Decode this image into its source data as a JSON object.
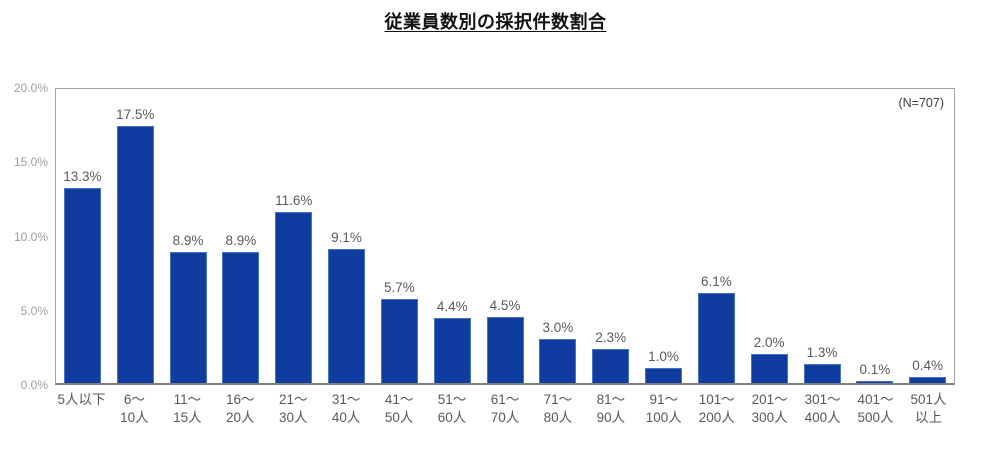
{
  "page": {
    "title": "従業員数別の採択件数割合",
    "annotation": "(N=707)"
  },
  "colors": {
    "bar_fill": "#0f3c9e",
    "bar_border": "#4472c4",
    "data_label_text": "#595959",
    "x_label_text": "#595959",
    "y_label_text": "#9e9e9e",
    "annotation_text": "#3f3f3f",
    "plot_border": "#a3a3a3",
    "axis_line": "#7f7f7f",
    "background": "#ffffff"
  },
  "chart_data": {
    "type": "bar",
    "title": "従業員数別の採択件数割合",
    "annotation": "(N=707)",
    "categories": [
      [
        "5人以下"
      ],
      [
        "6～",
        "10人"
      ],
      [
        "11～",
        "15人"
      ],
      [
        "16～",
        "20人"
      ],
      [
        "21～",
        "30人"
      ],
      [
        "31～",
        "40人"
      ],
      [
        "41～",
        "50人"
      ],
      [
        "51～",
        "60人"
      ],
      [
        "61～",
        "70人"
      ],
      [
        "71～",
        "80人"
      ],
      [
        "81～",
        "90人"
      ],
      [
        "91～",
        "100人"
      ],
      [
        "101～",
        "200人"
      ],
      [
        "201～",
        "300人"
      ],
      [
        "301～",
        "400人"
      ],
      [
        "401～",
        "500人"
      ],
      [
        "501人",
        "以上"
      ]
    ],
    "values": [
      13.3,
      17.5,
      8.9,
      8.9,
      11.6,
      9.1,
      5.7,
      4.4,
      4.5,
      3.0,
      2.3,
      1.0,
      6.1,
      2.0,
      1.3,
      0.1,
      0.4
    ],
    "data_labels": [
      "13.3%",
      "17.5%",
      "8.9%",
      "8.9%",
      "11.6%",
      "9.1%",
      "5.7%",
      "4.4%",
      "4.5%",
      "3.0%",
      "2.3%",
      "1.0%",
      "6.1%",
      "2.0%",
      "1.3%",
      "0.1%",
      "0.4%"
    ],
    "xlabel": "",
    "ylabel": "",
    "ylim": [
      0,
      20
    ],
    "yticks": [
      {
        "value": 0,
        "label": "0.0%"
      },
      {
        "value": 5,
        "label": "5.0%"
      },
      {
        "value": 10,
        "label": "10.0%"
      },
      {
        "value": 15,
        "label": "15.0%"
      },
      {
        "value": 20,
        "label": "20.0%"
      }
    ],
    "grid": false,
    "legend": false
  }
}
